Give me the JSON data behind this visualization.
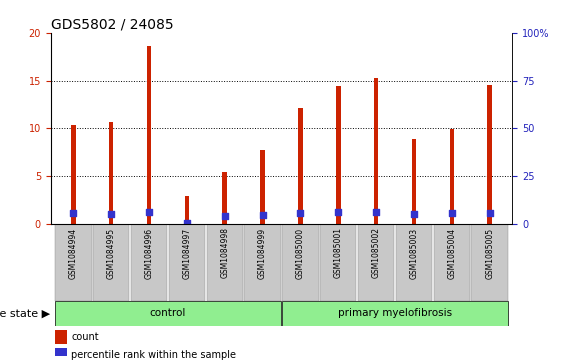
{
  "title": "GDS5802 / 24085",
  "samples": [
    "GSM1084994",
    "GSM1084995",
    "GSM1084996",
    "GSM1084997",
    "GSM1084998",
    "GSM1084999",
    "GSM1085000",
    "GSM1085001",
    "GSM1085002",
    "GSM1085003",
    "GSM1085004",
    "GSM1085005"
  ],
  "counts": [
    10.4,
    10.7,
    18.6,
    3.0,
    5.5,
    7.8,
    12.1,
    14.4,
    15.3,
    8.9,
    9.9,
    14.5
  ],
  "percentiles": [
    5.9,
    5.4,
    6.3,
    0.5,
    4.1,
    4.9,
    6.1,
    6.2,
    6.3,
    5.2,
    5.7,
    6.0
  ],
  "groups": [
    "control",
    "control",
    "control",
    "control",
    "control",
    "control",
    "primary myelofibrosis",
    "primary myelofibrosis",
    "primary myelofibrosis",
    "primary myelofibrosis",
    "primary myelofibrosis",
    "primary myelofibrosis"
  ],
  "bar_color": "#CC2200",
  "percentile_color": "#3333CC",
  "tick_color_left": "#CC2200",
  "tick_color_right": "#2222BB",
  "bar_width": 0.12,
  "left_ylim": [
    0,
    20
  ],
  "right_ylim": [
    0,
    100
  ],
  "left_yticks": [
    0,
    5,
    10,
    15,
    20
  ],
  "right_yticks": [
    0,
    25,
    50,
    75,
    100
  ],
  "right_yticklabels": [
    "0",
    "25",
    "50",
    "75",
    "100%"
  ],
  "green_color": "#90EE90",
  "gray_color": "#C8C8C8",
  "legend_count_label": "count",
  "legend_percentile_label": "percentile rank within the sample",
  "disease_state_label": "disease state",
  "title_fontsize": 10,
  "tick_fontsize": 7,
  "sample_fontsize": 5.5,
  "legend_fontsize": 7,
  "disease_fontsize": 7.5,
  "ds_label_fontsize": 8
}
